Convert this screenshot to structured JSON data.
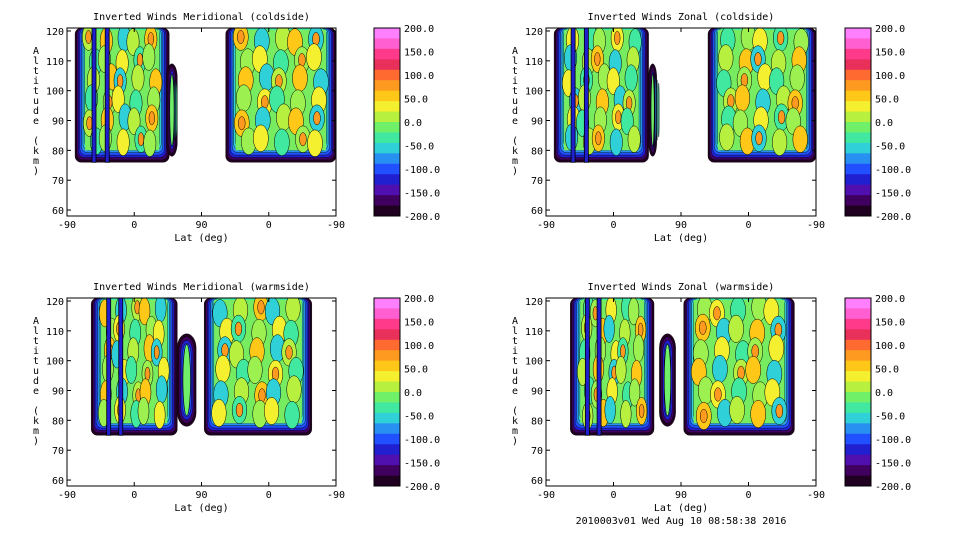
{
  "footer": "2010003v01 Wed Aug 10 08:58:38 2016",
  "colorbar": {
    "labels": [
      "200.0",
      "150.0",
      "100.0",
      "50.0",
      "0.0",
      "-50.0",
      "-100.0",
      "-150.0",
      "-200.0"
    ],
    "colors": [
      "#ff80ff",
      "#ff5fd0",
      "#ff3a8a",
      "#e8305a",
      "#ff6a30",
      "#ff9a20",
      "#ffc818",
      "#f4f030",
      "#b8f040",
      "#70f068",
      "#40e8a0",
      "#30d0d8",
      "#2890f0",
      "#2050ff",
      "#2020d0",
      "#5010b0",
      "#400060",
      "#200020"
    ]
  },
  "chart_data": [
    {
      "type": "heatmap",
      "title": "Inverted Winds Meridional (coldside)",
      "xlabel": "Lat (deg)",
      "ylabel": "Altitude (km)",
      "x_ticks": [
        "-90",
        "0",
        "90",
        "0",
        "-90"
      ],
      "y_ticks": [
        "60",
        "70",
        "80",
        "90",
        "100",
        "110",
        "120"
      ],
      "ylim": [
        58,
        121
      ],
      "zlim": [
        -200,
        200
      ],
      "covered_altitude_km": [
        76,
        120
      ]
    },
    {
      "type": "heatmap",
      "title": "Inverted Winds Zonal (coldside)",
      "xlabel": "Lat (deg)",
      "ylabel": "Altitude (km)",
      "x_ticks": [
        "-90",
        "0",
        "90",
        "0",
        "-90"
      ],
      "y_ticks": [
        "60",
        "70",
        "80",
        "90",
        "100",
        "110",
        "120"
      ],
      "ylim": [
        58,
        121
      ],
      "zlim": [
        -200,
        200
      ],
      "covered_altitude_km": [
        76,
        120
      ]
    },
    {
      "type": "heatmap",
      "title": "Inverted Winds Meridional (warmside)",
      "xlabel": "Lat (deg)",
      "ylabel": "Altitude (km)",
      "x_ticks": [
        "-90",
        "0",
        "90",
        "0",
        "-90"
      ],
      "y_ticks": [
        "60",
        "70",
        "80",
        "90",
        "100",
        "110",
        "120"
      ],
      "ylim": [
        58,
        121
      ],
      "zlim": [
        -200,
        200
      ],
      "covered_altitude_km": [
        75,
        120
      ]
    },
    {
      "type": "heatmap",
      "title": "Inverted Winds Zonal (warmside)",
      "xlabel": "Lat (deg)",
      "ylabel": "Altitude (km)",
      "x_ticks": [
        "-90",
        "0",
        "90",
        "0",
        "-90"
      ],
      "y_ticks": [
        "60",
        "70",
        "80",
        "90",
        "100",
        "110",
        "120"
      ],
      "ylim": [
        58,
        121
      ],
      "zlim": [
        -200,
        200
      ],
      "covered_altitude_km": [
        75,
        120
      ]
    }
  ]
}
